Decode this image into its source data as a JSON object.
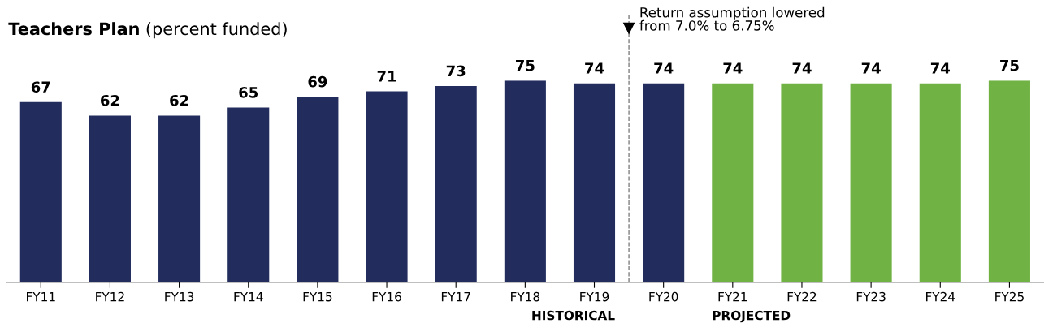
{
  "chart_data": {
    "type": "bar",
    "title": "Teachers Plan",
    "subtitle": "(percent funded)",
    "categories": [
      "FY11",
      "FY12",
      "FY13",
      "FY14",
      "FY15",
      "FY16",
      "FY17",
      "FY18",
      "FY19",
      "FY20",
      "FY21",
      "FY22",
      "FY23",
      "FY24",
      "FY25"
    ],
    "values": [
      67,
      62,
      62,
      65,
      69,
      71,
      73,
      75,
      74,
      74,
      74,
      74,
      74,
      74,
      75
    ],
    "colors": [
      "#222d5e",
      "#222d5e",
      "#222d5e",
      "#222d5e",
      "#222d5e",
      "#222d5e",
      "#222d5e",
      "#222d5e",
      "#222d5e",
      "#222d5e",
      "#70b244",
      "#70b244",
      "#70b244",
      "#70b244",
      "#70b244"
    ],
    "data_labels": true,
    "annotations": [
      "Return assumption lowered\nfrom 7.0% to 6.75%",
      "HISTORICAL",
      "PROJECTED"
    ]
  }
}
